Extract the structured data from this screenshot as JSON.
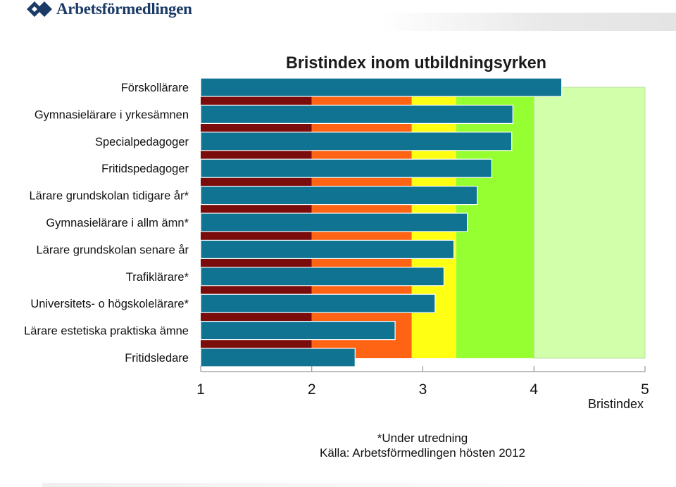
{
  "logo": {
    "text": "Arbetsförmedlingen"
  },
  "chart_data": {
    "type": "bar",
    "orientation": "horizontal",
    "title": "Bristindex inom utbildningsyrken",
    "xlabel": "Bristindex",
    "ylabel": "",
    "xlim": [
      1,
      5
    ],
    "xticks": [
      "1",
      "2",
      "3",
      "4",
      "5"
    ],
    "categories": [
      "Förskollärare",
      "Gymnasielärare i yrkesämnen",
      "Specialpedagoger",
      "Fritidspedagoger",
      "Lärare grundskolan tidigare år*",
      "Gymnasielärare i allm ämn*",
      "Lärare grundskolan senare år",
      "Trafiklärare*",
      "Universitets- o högskolelärare*",
      "Lärare estetiska praktiska ämne",
      "Fritidsledare"
    ],
    "values": [
      4.25,
      3.81,
      3.8,
      3.62,
      3.49,
      3.4,
      3.28,
      3.19,
      3.11,
      2.75,
      2.39
    ],
    "bar_color": "#0f7391",
    "background_bands": [
      {
        "from": 1.0,
        "to": 2.0,
        "color": "#7a0c0c"
      },
      {
        "from": 2.0,
        "to": 2.9,
        "color": "#ff6414"
      },
      {
        "from": 2.9,
        "to": 3.3,
        "color": "#ffff14"
      },
      {
        "from": 3.3,
        "to": 4.0,
        "color": "#96ff32"
      },
      {
        "from": 4.0,
        "to": 5.0,
        "color": "#d2ffaa"
      }
    ],
    "grid": false,
    "legend": "none"
  },
  "notes": {
    "line1": "*Under utredning",
    "line2": "Källa: Arbetsförmedlingen hösten 2012"
  }
}
